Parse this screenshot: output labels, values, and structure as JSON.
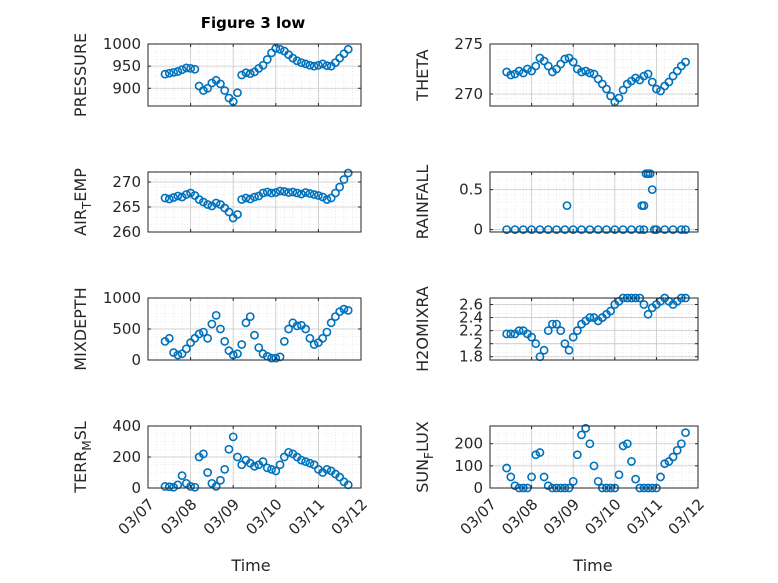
{
  "figure_title": "Figure 3 low",
  "colors": {
    "marker": "#0072BD",
    "axis": "#262626",
    "grid": "#dcdcdc"
  },
  "x_tick_labels": [
    "03/07",
    "03/08",
    "03/09",
    "03/10",
    "03/11",
    "03/12"
  ],
  "x_axis_label": "Time",
  "chart_data": [
    {
      "type": "scatter",
      "ylabel": "PRESSURE",
      "ylim": [
        860,
        1000
      ],
      "yticks": [
        900,
        950,
        1000
      ],
      "x": [
        0.4,
        0.5,
        0.6,
        0.7,
        0.8,
        0.9,
        1.0,
        1.1,
        1.2,
        1.3,
        1.4,
        1.5,
        1.6,
        1.7,
        1.8,
        1.9,
        2.0,
        2.1,
        2.2,
        2.3,
        2.4,
        2.5,
        2.6,
        2.7,
        2.8,
        2.9,
        3.0,
        3.1,
        3.2,
        3.3,
        3.4,
        3.5,
        3.6,
        3.7,
        3.8,
        3.9,
        4.0,
        4.1,
        4.2,
        4.3,
        4.4,
        4.5,
        4.6,
        4.7
      ],
      "y": [
        932,
        934,
        936,
        938,
        942,
        946,
        945,
        943,
        905,
        895,
        900,
        912,
        918,
        910,
        895,
        878,
        870,
        890,
        930,
        935,
        933,
        937,
        945,
        952,
        965,
        980,
        990,
        988,
        984,
        976,
        968,
        962,
        958,
        955,
        952,
        950,
        952,
        955,
        951,
        950,
        958,
        968,
        978,
        988
      ]
    },
    {
      "type": "scatter",
      "ylabel": "THETA",
      "ylim": [
        268.8,
        275
      ],
      "yticks": [
        270,
        275
      ],
      "x": [
        0.4,
        0.5,
        0.6,
        0.7,
        0.8,
        0.9,
        1.0,
        1.1,
        1.2,
        1.3,
        1.4,
        1.5,
        1.6,
        1.7,
        1.8,
        1.9,
        2.0,
        2.1,
        2.2,
        2.3,
        2.4,
        2.5,
        2.6,
        2.7,
        2.8,
        2.9,
        3.0,
        3.1,
        3.2,
        3.3,
        3.4,
        3.5,
        3.6,
        3.7,
        3.8,
        3.9,
        4.0,
        4.1,
        4.2,
        4.3,
        4.4,
        4.5,
        4.6,
        4.7
      ],
      "y": [
        272.2,
        271.9,
        272.0,
        272.3,
        272.1,
        272.5,
        272.3,
        272.8,
        273.6,
        273.3,
        272.8,
        272.2,
        272.5,
        273.0,
        273.5,
        273.6,
        273.2,
        272.5,
        272.2,
        272.3,
        272.1,
        272.0,
        271.5,
        271.0,
        270.5,
        269.8,
        269.2,
        269.6,
        270.4,
        271.0,
        271.3,
        271.6,
        271.4,
        271.8,
        272.0,
        271.2,
        270.5,
        270.3,
        270.8,
        271.2,
        271.8,
        272.3,
        272.8,
        273.2
      ]
    },
    {
      "type": "scatter",
      "ylabel": "AIR_TEMP",
      "ylim": [
        260,
        272
      ],
      "yticks": [
        260,
        265,
        270
      ],
      "x": [
        0.4,
        0.5,
        0.6,
        0.7,
        0.8,
        0.9,
        1.0,
        1.1,
        1.2,
        1.3,
        1.4,
        1.5,
        1.6,
        1.7,
        1.8,
        1.9,
        2.0,
        2.1,
        2.2,
        2.3,
        2.4,
        2.5,
        2.6,
        2.7,
        2.8,
        2.9,
        3.0,
        3.1,
        3.2,
        3.3,
        3.4,
        3.5,
        3.6,
        3.7,
        3.8,
        3.9,
        4.0,
        4.1,
        4.2,
        4.3,
        4.4,
        4.5,
        4.6,
        4.7
      ],
      "y": [
        266.8,
        266.6,
        266.9,
        267.2,
        267.0,
        267.5,
        267.8,
        267.3,
        266.5,
        266.0,
        265.5,
        265.2,
        265.8,
        265.5,
        264.8,
        264.0,
        262.8,
        263.5,
        266.5,
        266.8,
        266.6,
        267.0,
        267.2,
        267.8,
        268.0,
        267.8,
        267.9,
        268.2,
        268.1,
        267.9,
        268.0,
        267.8,
        267.6,
        267.9,
        267.7,
        267.5,
        267.3,
        267.0,
        266.5,
        266.8,
        267.8,
        269.0,
        270.5,
        271.8
      ]
    },
    {
      "type": "scatter",
      "ylabel": "RAINFALL",
      "ylim": [
        -0.03,
        0.72
      ],
      "yticks": [
        0,
        0.5
      ],
      "x": [
        0.4,
        0.6,
        0.8,
        1.0,
        1.2,
        1.4,
        1.6,
        1.8,
        2.0,
        2.2,
        2.4,
        2.6,
        2.8,
        3.0,
        3.2,
        3.4,
        3.6,
        3.7,
        1.85,
        3.65,
        3.7,
        3.75,
        3.8,
        3.85,
        3.9,
        3.95,
        4.0,
        4.2,
        4.4,
        4.6,
        4.7
      ],
      "y": [
        0,
        0,
        0,
        0,
        0,
        0,
        0,
        0,
        0,
        0,
        0,
        0,
        0,
        0,
        0,
        0,
        0,
        0,
        0.3,
        0.3,
        0.3,
        0.7,
        0.7,
        0.7,
        0.5,
        0,
        0,
        0,
        0,
        0,
        0
      ]
    },
    {
      "type": "scatter",
      "ylabel": "MIXDEPTH",
      "ylim": [
        0,
        1000
      ],
      "yticks": [
        0,
        500,
        1000
      ],
      "x": [
        0.4,
        0.5,
        0.6,
        0.7,
        0.8,
        0.9,
        1.0,
        1.1,
        1.2,
        1.3,
        1.4,
        1.5,
        1.6,
        1.7,
        1.8,
        1.9,
        2.0,
        2.1,
        2.2,
        2.3,
        2.4,
        2.5,
        2.6,
        2.7,
        2.8,
        2.9,
        3.0,
        3.1,
        3.2,
        3.3,
        3.4,
        3.5,
        3.6,
        3.7,
        3.8,
        3.9,
        4.0,
        4.1,
        4.2,
        4.3,
        4.4,
        4.5,
        4.6,
        4.7
      ],
      "y": [
        300,
        350,
        120,
        80,
        100,
        180,
        280,
        350,
        420,
        450,
        350,
        580,
        720,
        500,
        300,
        150,
        80,
        100,
        250,
        600,
        700,
        400,
        200,
        100,
        60,
        30,
        30,
        50,
        300,
        500,
        600,
        550,
        560,
        500,
        350,
        250,
        280,
        350,
        450,
        600,
        700,
        780,
        820,
        800
      ]
    },
    {
      "type": "scatter",
      "ylabel": "H2OMIXRA",
      "ylim": [
        1.75,
        2.7
      ],
      "yticks": [
        1.8,
        2,
        2.2,
        2.4,
        2.6
      ],
      "x": [
        0.4,
        0.5,
        0.6,
        0.7,
        0.8,
        0.9,
        1.0,
        1.1,
        1.2,
        1.3,
        1.4,
        1.5,
        1.6,
        1.7,
        1.8,
        1.9,
        2.0,
        2.1,
        2.2,
        2.3,
        2.4,
        2.5,
        2.6,
        2.7,
        2.8,
        2.9,
        3.0,
        3.1,
        3.2,
        3.3,
        3.4,
        3.5,
        3.6,
        3.7,
        3.8,
        3.9,
        4.0,
        4.1,
        4.2,
        4.3,
        4.4,
        4.5,
        4.6,
        4.7
      ],
      "y": [
        2.15,
        2.15,
        2.15,
        2.2,
        2.2,
        2.15,
        2.1,
        2.0,
        1.8,
        1.9,
        2.2,
        2.3,
        2.3,
        2.2,
        2.0,
        1.9,
        2.1,
        2.2,
        2.3,
        2.35,
        2.4,
        2.4,
        2.35,
        2.4,
        2.45,
        2.5,
        2.6,
        2.65,
        2.7,
        2.7,
        2.7,
        2.7,
        2.7,
        2.6,
        2.45,
        2.55,
        2.6,
        2.65,
        2.7,
        2.65,
        2.6,
        2.65,
        2.7,
        2.7
      ]
    },
    {
      "type": "scatter",
      "ylabel": "TERR_MSL",
      "ylim": [
        0,
        400
      ],
      "yticks": [
        0,
        200,
        400
      ],
      "x": [
        0.4,
        0.5,
        0.6,
        0.7,
        0.8,
        0.9,
        1.0,
        1.1,
        1.2,
        1.3,
        1.4,
        1.5,
        1.6,
        1.7,
        1.8,
        1.9,
        2.0,
        2.1,
        2.2,
        2.3,
        2.4,
        2.5,
        2.6,
        2.7,
        2.8,
        2.9,
        3.0,
        3.1,
        3.2,
        3.3,
        3.4,
        3.5,
        3.6,
        3.7,
        3.8,
        3.9,
        4.0,
        4.1,
        4.2,
        4.3,
        4.4,
        4.5,
        4.6,
        4.7
      ],
      "y": [
        10,
        8,
        5,
        20,
        80,
        30,
        10,
        5,
        200,
        220,
        100,
        30,
        10,
        50,
        120,
        250,
        330,
        200,
        150,
        180,
        160,
        140,
        150,
        170,
        130,
        120,
        110,
        150,
        200,
        230,
        220,
        200,
        180,
        170,
        160,
        150,
        120,
        100,
        120,
        110,
        90,
        70,
        40,
        20
      ]
    },
    {
      "type": "scatter",
      "ylabel": "SUN_FLUX",
      "ylim": [
        0,
        280
      ],
      "yticks": [
        0,
        100,
        200
      ],
      "x": [
        0.4,
        0.5,
        0.6,
        0.7,
        0.8,
        0.9,
        1.0,
        1.1,
        1.2,
        1.3,
        1.4,
        1.5,
        1.6,
        1.7,
        1.8,
        1.9,
        2.0,
        2.1,
        2.2,
        2.3,
        2.4,
        2.5,
        2.6,
        2.7,
        2.8,
        2.9,
        3.0,
        3.1,
        3.2,
        3.3,
        3.4,
        3.5,
        3.6,
        3.7,
        3.8,
        3.9,
        4.0,
        4.1,
        4.2,
        4.3,
        4.4,
        4.5,
        4.6,
        4.7
      ],
      "y": [
        90,
        50,
        10,
        0,
        0,
        0,
        50,
        150,
        160,
        50,
        10,
        0,
        0,
        0,
        0,
        0,
        30,
        150,
        240,
        270,
        200,
        100,
        30,
        0,
        0,
        0,
        0,
        60,
        190,
        200,
        120,
        40,
        0,
        0,
        0,
        0,
        0,
        50,
        110,
        120,
        140,
        170,
        200,
        250
      ]
    }
  ]
}
